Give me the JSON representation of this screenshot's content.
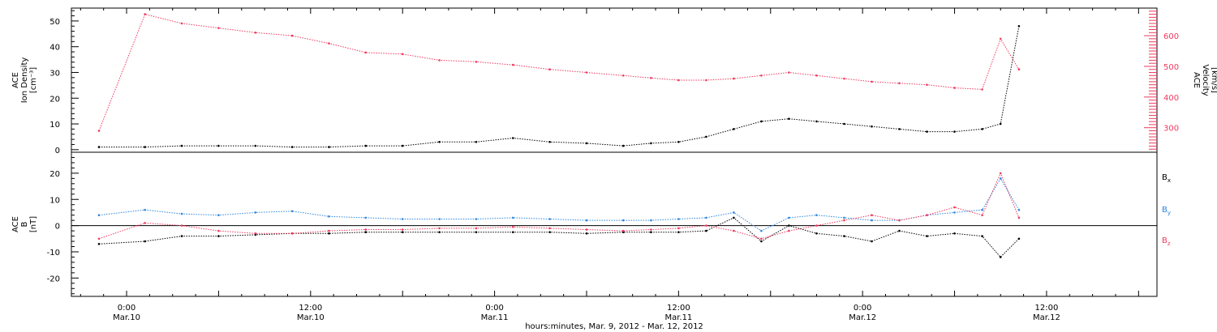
{
  "chart_data": [
    {
      "type": "scatter",
      "panel": "top",
      "ylabel_lines": [
        "ACE",
        "Ion Density",
        "[cm⁻³]"
      ],
      "y2label_lines": [
        "ACE",
        "Velocity",
        "[km/s]"
      ],
      "ylim": [
        -1,
        55
      ],
      "y2lim": [
        220,
        690
      ],
      "yticks": [
        0,
        10,
        20,
        30,
        40,
        50
      ],
      "y2ticks": [
        300,
        400,
        500,
        600
      ],
      "series": [
        {
          "key": "density",
          "axis": "left",
          "color": "#000000",
          "x": [
            -0.3,
            0.2,
            0.6,
            1.0,
            1.4,
            1.8,
            2.2,
            2.6,
            3.0,
            3.4,
            3.8,
            4.2,
            4.6,
            5.0,
            5.4,
            5.7,
            6.0,
            6.3,
            6.6,
            6.9,
            7.2,
            7.5,
            7.8,
            8.1,
            8.4,
            8.7,
            9.0,
            9.3,
            9.5,
            9.7
          ],
          "y": [
            1,
            1,
            1.5,
            1.5,
            1.5,
            1,
            1,
            1.5,
            1.5,
            3,
            3,
            4.5,
            3,
            2.5,
            1.5,
            2.5,
            3,
            5,
            8,
            11,
            12,
            11,
            10,
            9,
            8,
            7,
            7,
            8,
            10,
            48
          ]
        },
        {
          "key": "velocity",
          "axis": "right",
          "color": "#ee3a5f",
          "x": [
            -0.3,
            0.2,
            0.6,
            1.0,
            1.4,
            1.8,
            2.2,
            2.6,
            3.0,
            3.4,
            3.8,
            4.2,
            4.6,
            5.0,
            5.4,
            5.7,
            6.0,
            6.3,
            6.6,
            6.9,
            7.2,
            7.5,
            7.8,
            8.1,
            8.4,
            8.7,
            9.0,
            9.3,
            9.5,
            9.7
          ],
          "y": [
            290,
            670,
            640,
            625,
            610,
            600,
            575,
            545,
            540,
            520,
            515,
            505,
            490,
            480,
            470,
            462,
            455,
            455,
            460,
            470,
            480,
            470,
            460,
            450,
            445,
            440,
            430,
            425,
            590,
            490
          ]
        }
      ]
    },
    {
      "type": "scatter",
      "panel": "bottom",
      "ylabel_lines": [
        "ACE",
        "B",
        "[nT]"
      ],
      "ylim": [
        -27,
        28
      ],
      "yticks": [
        -20,
        -10,
        0,
        10,
        20
      ],
      "zero_line": true,
      "series": [
        {
          "key": "bx",
          "name": "B",
          "sub": "x",
          "color": "#000000",
          "x": [
            -0.3,
            0.2,
            0.6,
            1.0,
            1.4,
            1.8,
            2.2,
            2.6,
            3.0,
            3.4,
            3.8,
            4.2,
            4.6,
            5.0,
            5.4,
            5.7,
            6.0,
            6.3,
            6.6,
            6.9,
            7.2,
            7.5,
            7.8,
            8.1,
            8.4,
            8.7,
            9.0,
            9.3,
            9.5,
            9.7
          ],
          "y": [
            -7,
            -6,
            -4,
            -4,
            -3.5,
            -3,
            -3,
            -2.5,
            -2.5,
            -2.5,
            -2.5,
            -2.5,
            -2.5,
            -3,
            -2.5,
            -2.5,
            -2.5,
            -2,
            3,
            -6,
            0,
            -3,
            -4,
            -6,
            -2,
            -4,
            -3,
            -4,
            -12,
            -5
          ]
        },
        {
          "key": "by",
          "name": "B",
          "sub": "y",
          "color": "#2e86de",
          "x": [
            -0.3,
            0.2,
            0.6,
            1.0,
            1.4,
            1.8,
            2.2,
            2.6,
            3.0,
            3.4,
            3.8,
            4.2,
            4.6,
            5.0,
            5.4,
            5.7,
            6.0,
            6.3,
            6.6,
            6.9,
            7.2,
            7.5,
            7.8,
            8.1,
            8.4,
            8.7,
            9.0,
            9.3,
            9.5,
            9.7
          ],
          "y": [
            4,
            6,
            4.5,
            4,
            5,
            5.5,
            3.5,
            3,
            2.5,
            2.5,
            2.5,
            3,
            2.5,
            2,
            2,
            2,
            2.5,
            3,
            5,
            -2,
            3,
            4,
            3,
            2,
            2,
            4,
            5,
            6,
            18,
            6
          ]
        },
        {
          "key": "bz",
          "name": "B",
          "sub": "z",
          "color": "#ee3a5f",
          "x": [
            -0.3,
            0.2,
            0.6,
            1.0,
            1.4,
            1.8,
            2.2,
            2.6,
            3.0,
            3.4,
            3.8,
            4.2,
            4.6,
            5.0,
            5.4,
            5.7,
            6.0,
            6.3,
            6.6,
            6.9,
            7.2,
            7.5,
            7.8,
            8.1,
            8.4,
            8.7,
            9.0,
            9.3,
            9.5,
            9.7
          ],
          "y": [
            -5,
            1,
            0,
            -2,
            -3,
            -3,
            -2,
            -1.5,
            -1.5,
            -1,
            -1,
            -0.5,
            -1,
            -1.5,
            -2,
            -1.5,
            -1,
            0,
            -2,
            -5,
            -2,
            0,
            2,
            4,
            2,
            4,
            7,
            4,
            20,
            3
          ]
        }
      ]
    }
  ],
  "x_axis": {
    "xlim": [
      -0.6,
      11.2
    ],
    "ticks": [
      {
        "x": 0,
        "time": "0:00",
        "date": "Mar.10"
      },
      {
        "x": 2,
        "time": "12:00",
        "date": "Mar.10"
      },
      {
        "x": 4,
        "time": "0:00",
        "date": "Mar.11"
      },
      {
        "x": 6,
        "time": "12:00",
        "date": "Mar.11"
      },
      {
        "x": 8,
        "time": "0:00",
        "date": "Mar.12"
      },
      {
        "x": 10,
        "time": "12:00",
        "date": "Mar.12"
      }
    ],
    "label": "hours:minutes, Mar.  9, 2012 - Mar. 12, 2012"
  }
}
